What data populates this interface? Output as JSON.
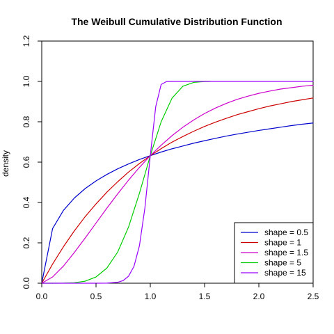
{
  "chart_data": {
    "type": "line",
    "title": "The Weibull Cumulative Distribution Function",
    "xlabel": "",
    "ylabel": "density",
    "xlim": [
      0,
      2.5
    ],
    "ylim": [
      0,
      1.2
    ],
    "x_ticks": [
      0.0,
      0.5,
      1.0,
      1.5,
      2.0,
      2.5
    ],
    "y_ticks": [
      0.0,
      0.2,
      0.4,
      0.6,
      0.8,
      1.0,
      1.2
    ],
    "x_tick_labels": [
      "0.0",
      "0.5",
      "1.0",
      "1.5",
      "2.0",
      "2.5"
    ],
    "y_tick_labels": [
      "0.0",
      "0.2",
      "0.4",
      "0.6",
      "0.8",
      "1.0",
      "1.2"
    ],
    "grid": false,
    "legend_placement": "bottom-right",
    "series": [
      {
        "name": "shape = 0.5",
        "color": "#0000cc",
        "x": [
          0.0,
          0.1,
          0.2,
          0.3,
          0.4,
          0.5,
          0.6,
          0.7,
          0.8,
          0.9,
          1.0,
          1.1,
          1.2,
          1.3,
          1.4,
          1.5,
          1.6,
          1.7,
          1.8,
          1.9,
          2.0,
          2.1,
          2.2,
          2.3,
          2.4,
          2.5
        ],
        "y": [
          0.0,
          0.271,
          0.361,
          0.422,
          0.469,
          0.507,
          0.539,
          0.567,
          0.591,
          0.613,
          0.632,
          0.65,
          0.666,
          0.68,
          0.694,
          0.706,
          0.718,
          0.729,
          0.739,
          0.748,
          0.757,
          0.765,
          0.773,
          0.781,
          0.788,
          0.794
        ]
      },
      {
        "name": "shape = 1",
        "color": "#cc0000",
        "x": [
          0.0,
          0.1,
          0.2,
          0.3,
          0.4,
          0.5,
          0.6,
          0.7,
          0.8,
          0.9,
          1.0,
          1.1,
          1.2,
          1.3,
          1.4,
          1.5,
          1.6,
          1.7,
          1.8,
          1.9,
          2.0,
          2.1,
          2.2,
          2.3,
          2.4,
          2.5
        ],
        "y": [
          0.0,
          0.095,
          0.181,
          0.259,
          0.33,
          0.393,
          0.451,
          0.503,
          0.551,
          0.593,
          0.632,
          0.667,
          0.699,
          0.727,
          0.753,
          0.777,
          0.798,
          0.817,
          0.835,
          0.85,
          0.865,
          0.878,
          0.889,
          0.9,
          0.909,
          0.918
        ]
      },
      {
        "name": "shape = 1.5",
        "color": "#cc00cc",
        "x": [
          0.0,
          0.1,
          0.2,
          0.3,
          0.4,
          0.5,
          0.6,
          0.7,
          0.8,
          0.9,
          1.0,
          1.1,
          1.2,
          1.3,
          1.4,
          1.5,
          1.6,
          1.7,
          1.8,
          1.9,
          2.0,
          2.1,
          2.2,
          2.3,
          2.4,
          2.5
        ],
        "y": [
          0.0,
          0.031,
          0.085,
          0.152,
          0.224,
          0.298,
          0.372,
          0.443,
          0.511,
          0.574,
          0.632,
          0.684,
          0.731,
          0.773,
          0.809,
          0.841,
          0.868,
          0.891,
          0.911,
          0.927,
          0.941,
          0.952,
          0.962,
          0.969,
          0.976,
          0.981
        ]
      },
      {
        "name": "shape = 5",
        "color": "#00cc00",
        "x": [
          0.0,
          0.1,
          0.2,
          0.3,
          0.4,
          0.5,
          0.6,
          0.7,
          0.8,
          0.9,
          1.0,
          1.1,
          1.2,
          1.3,
          1.4,
          1.5,
          1.55
        ],
        "y": [
          0.0,
          1e-05,
          0.0003,
          0.0024,
          0.01,
          0.031,
          0.075,
          0.155,
          0.279,
          0.446,
          0.632,
          0.8,
          0.917,
          0.976,
          0.995,
          0.9995,
          1.0
        ]
      },
      {
        "name": "shape = 15",
        "color": "#9900ff",
        "x": [
          0.0,
          0.5,
          0.6,
          0.7,
          0.75,
          0.8,
          0.85,
          0.9,
          0.95,
          1.0,
          1.05,
          1.1,
          1.15,
          1.2,
          1.5,
          2.0,
          2.5
        ],
        "y": [
          0.0,
          3e-05,
          0.0005,
          0.0047,
          0.013,
          0.035,
          0.084,
          0.186,
          0.372,
          0.632,
          0.875,
          0.985,
          0.9997,
          1.0,
          1.0,
          1.0,
          1.0
        ]
      }
    ]
  }
}
